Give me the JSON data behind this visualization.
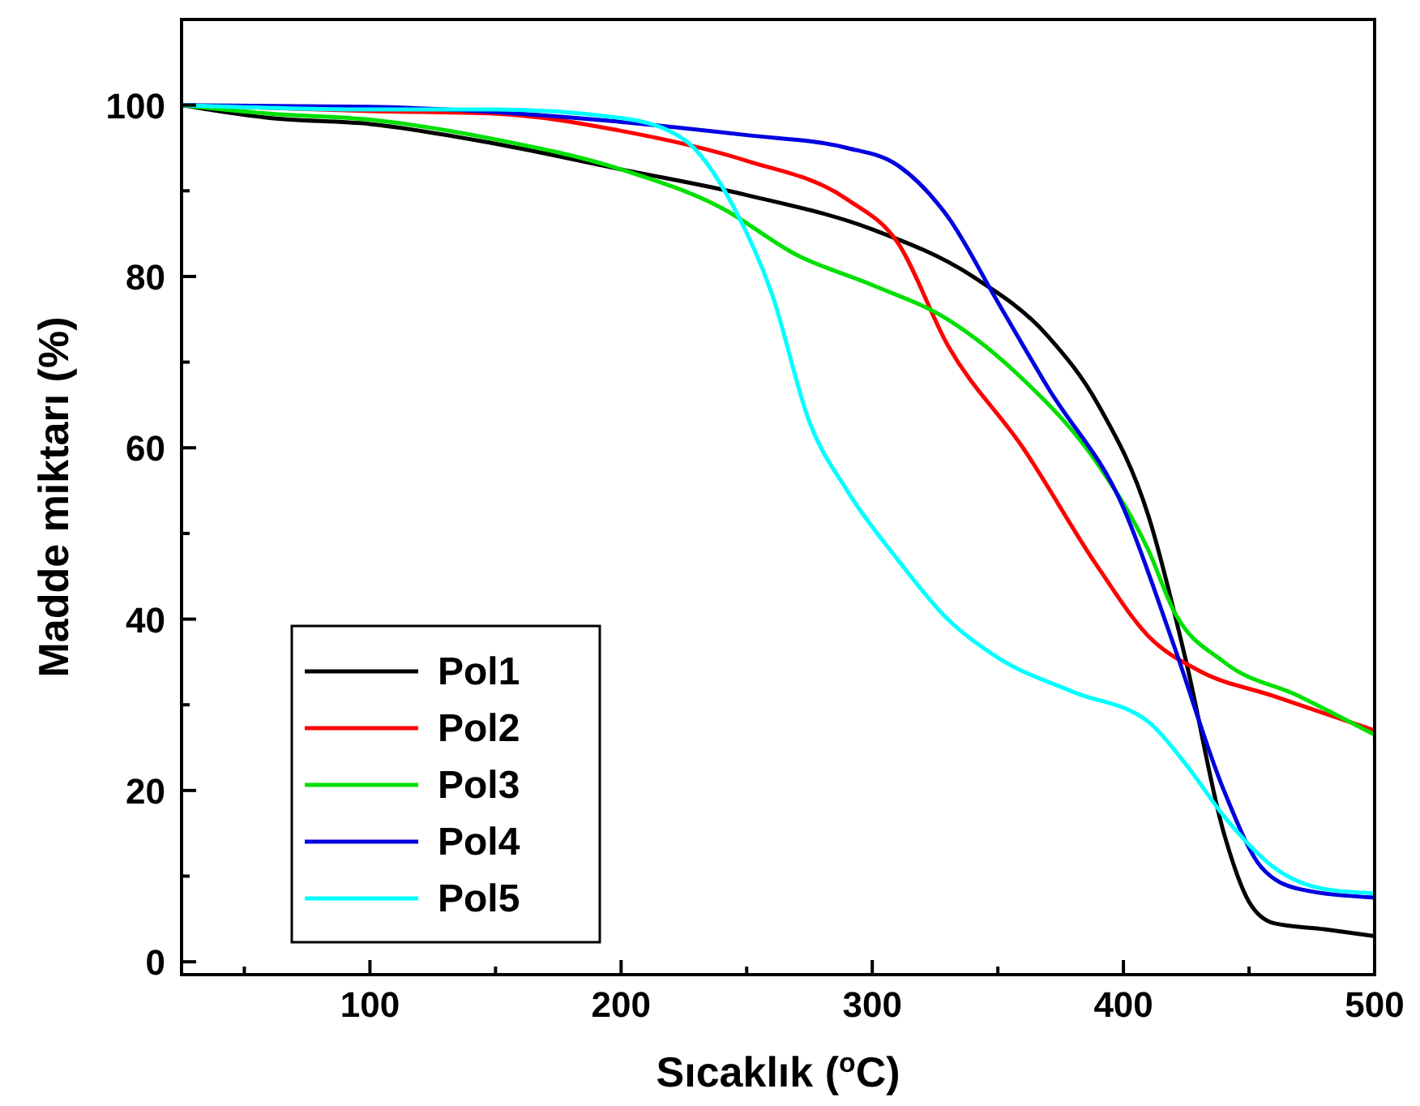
{
  "chart_data": {
    "type": "line",
    "xlabel": "Sıcaklık ($^{o}$C)",
    "ylabel": "Madde miktarı (%)",
    "xlim": [
      25,
      500
    ],
    "ylim": [
      -1.5,
      110
    ],
    "xticks": [
      {
        "value": 50,
        "label": null
      },
      100,
      {
        "value": 150,
        "label": null
      },
      200,
      {
        "value": 250,
        "label": null
      },
      300,
      {
        "value": 350,
        "label": null
      },
      400,
      {
        "value": 450,
        "label": null
      },
      500
    ],
    "yticks": [
      0,
      {
        "value": 10,
        "label": null
      },
      20,
      {
        "value": 30,
        "label": null
      },
      40,
      {
        "value": 50,
        "label": null
      },
      60,
      {
        "value": 70,
        "label": null
      },
      80,
      {
        "value": 90,
        "label": null
      },
      100
    ],
    "grid": false,
    "legend": "bottom left",
    "marker": "none",
    "line_style": "solid",
    "series": [
      {
        "name": "Pol1",
        "color": "#000000",
        "x": [
          25,
          60,
          100,
          150,
          200,
          250,
          300,
          340,
          370,
          390,
          410,
          425,
          440,
          450,
          460,
          480,
          500
        ],
        "values": [
          100,
          98.5,
          97.8,
          95.5,
          92.5,
          89.5,
          85.5,
          80,
          73,
          65,
          52,
          35,
          15,
          7,
          4.5,
          3.8,
          3
        ]
      },
      {
        "name": "Pol2",
        "color": "#ff0000",
        "x": [
          25,
          100,
          150,
          200,
          250,
          290,
          310,
          330,
          360,
          390,
          410,
          430,
          460,
          500
        ],
        "values": [
          100,
          99.3,
          99,
          97,
          93.5,
          89,
          84,
          72,
          60,
          46,
          38,
          34,
          31,
          27
        ]
      },
      {
        "name": "Pol3",
        "color": "#00e000",
        "x": [
          25,
          60,
          100,
          150,
          200,
          240,
          270,
          300,
          330,
          360,
          390,
          410,
          420,
          440,
          470,
          500
        ],
        "values": [
          100,
          99,
          98.3,
          96,
          92.5,
          88,
          82.5,
          79,
          75,
          68,
          58,
          48,
          41,
          35,
          31,
          26.5
        ]
      },
      {
        "name": "Pol4",
        "color": "#0000e0",
        "x": [
          25,
          100,
          250,
          290,
          310,
          330,
          350,
          370,
          400,
          420,
          440,
          455,
          470,
          500
        ],
        "values": [
          100,
          99.8,
          96.5,
          95,
          93,
          87,
          77,
          67,
          53,
          37,
          20,
          11,
          8.5,
          7.5
        ]
      },
      {
        "name": "Pol5",
        "color": "#00ffff",
        "x": [
          25,
          100,
          150,
          200,
          225,
          245,
          260,
          275,
          290,
          310,
          330,
          350,
          380,
          410,
          425,
          440,
          460,
          480,
          500
        ],
        "values": [
          100,
          99.5,
          99.5,
          98.5,
          96,
          88,
          78,
          63,
          55,
          47,
          40,
          35.5,
          31.5,
          28,
          23,
          17,
          11,
          8.5,
          8
        ]
      }
    ]
  }
}
